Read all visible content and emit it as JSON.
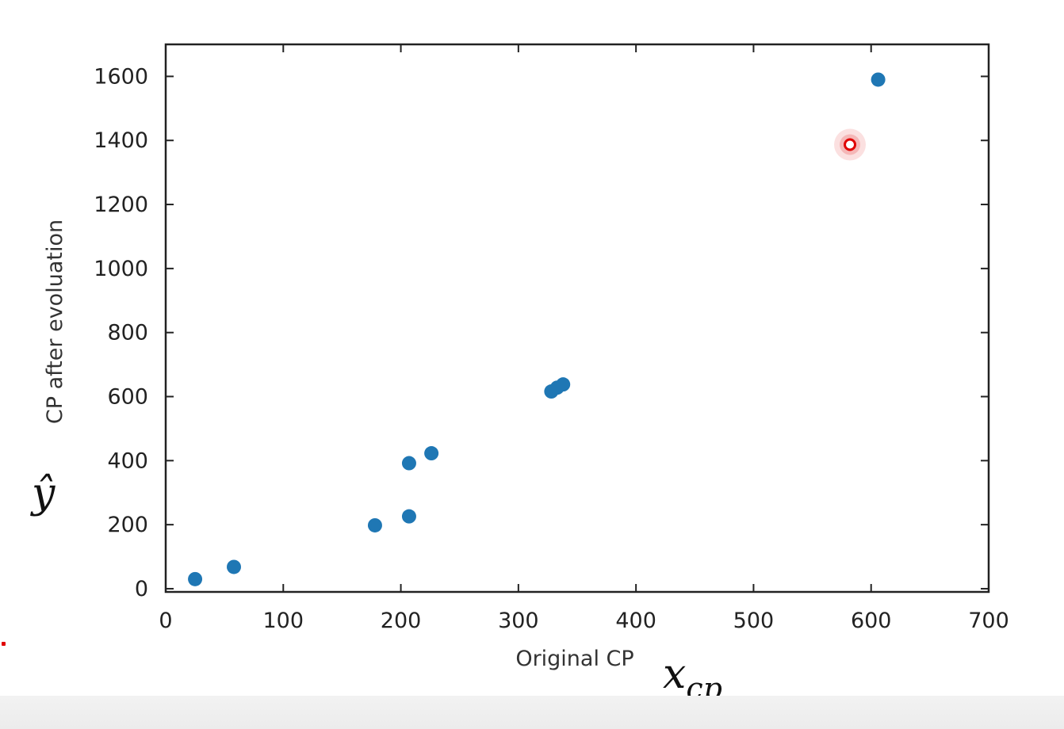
{
  "chart_data": {
    "type": "scatter",
    "xlabel": "Original CP",
    "ylabel": "CP after evoluation",
    "xlim": [
      0,
      700
    ],
    "ylim": [
      -10,
      1700
    ],
    "x_ticks": [
      0,
      100,
      200,
      300,
      400,
      500,
      600,
      700
    ],
    "y_ticks": [
      0,
      200,
      400,
      600,
      800,
      1000,
      1200,
      1400,
      1600
    ],
    "grid": false,
    "series": [
      {
        "color": "#1f77b4",
        "x": [
          25,
          58,
          178,
          207,
          207,
          226,
          328,
          333,
          338,
          606
        ],
        "y": [
          30,
          68,
          198,
          226,
          392,
          423,
          616,
          628,
          638,
          1590
        ]
      }
    ],
    "highlight_point": {
      "x": 582,
      "y": 1387,
      "color": "#e00000"
    },
    "annotations": {
      "y_symbol": "ŷ",
      "x_symbol_base": "x",
      "x_symbol_sub": "cp"
    }
  }
}
